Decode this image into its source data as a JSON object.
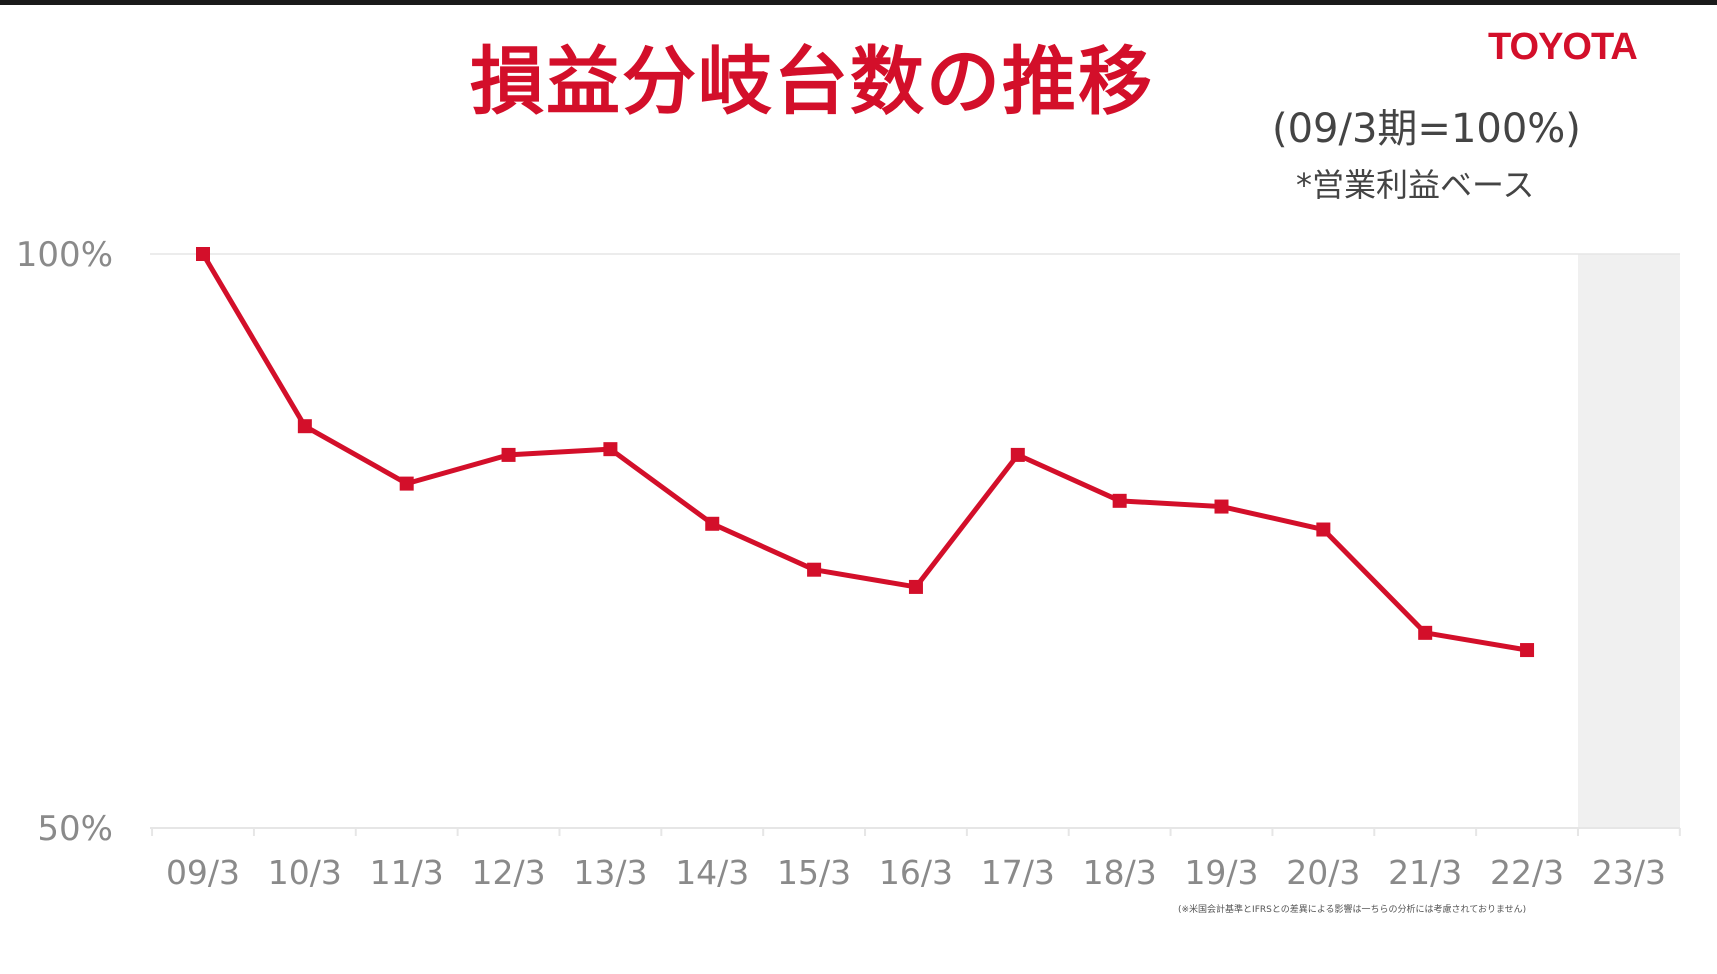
{
  "title": "損益分岐台数の推移",
  "brand": "TOYOTA",
  "subtitle": "(09/3期=100%)",
  "note": "*営業利益ベース",
  "footnote": "(※米国会計基準とIFRSとの差異による影響は一ちらの分析には考慮されておりません)",
  "colors": {
    "line": "#d30f2a",
    "title": "#d30f2a",
    "shade": "#f0f0f0",
    "grid": "#e6e6e6",
    "tick_text": "#8a8a8a"
  },
  "chart_data": {
    "type": "line",
    "categories": [
      "09/3",
      "10/3",
      "11/3",
      "12/3",
      "13/3",
      "14/3",
      "15/3",
      "16/3",
      "17/3",
      "18/3",
      "19/3",
      "20/3",
      "21/3",
      "22/3",
      "23/3"
    ],
    "series": [
      {
        "values": [
          100,
          85,
          80,
          82.5,
          83,
          76.5,
          72.5,
          71,
          82.5,
          78.5,
          78,
          76,
          67,
          65.5,
          null
        ]
      }
    ],
    "y_ticks": [
      "100%",
      "50%"
    ],
    "ylim": [
      50,
      100
    ],
    "shaded_category": "23/3",
    "grid": false,
    "legend": "none"
  }
}
